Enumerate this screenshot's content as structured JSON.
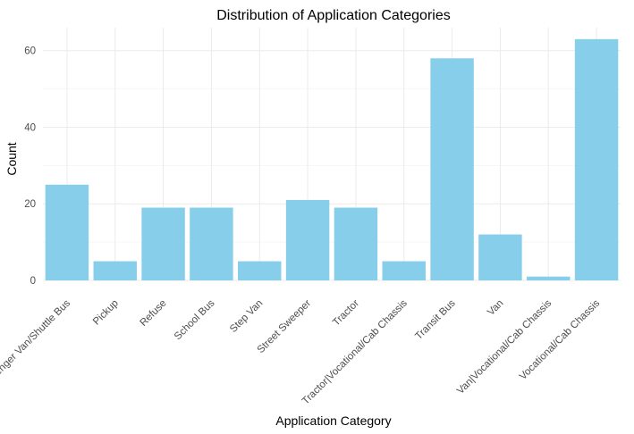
{
  "chart_data": {
    "type": "bar",
    "title": "Distribution of Application Categories",
    "xlabel": "Application Category",
    "ylabel": "Count",
    "categories": [
      "Passenger Van/Shuttle Bus",
      "Pickup",
      "Refuse",
      "School Bus",
      "Step Van",
      "Street Sweeper",
      "Tractor",
      "Tractor|Vocational/Cab Chassis",
      "Transit Bus",
      "Van",
      "Van|Vocational/Cab Chassis",
      "Vocational/Cab Chassis"
    ],
    "values": [
      25,
      5,
      19,
      19,
      5,
      21,
      19,
      5,
      58,
      12,
      1,
      63
    ],
    "ylim": [
      0,
      66
    ],
    "yticks": [
      "0",
      "20",
      "40",
      "60"
    ],
    "grid": true,
    "bar_color": "#87CEEB"
  }
}
